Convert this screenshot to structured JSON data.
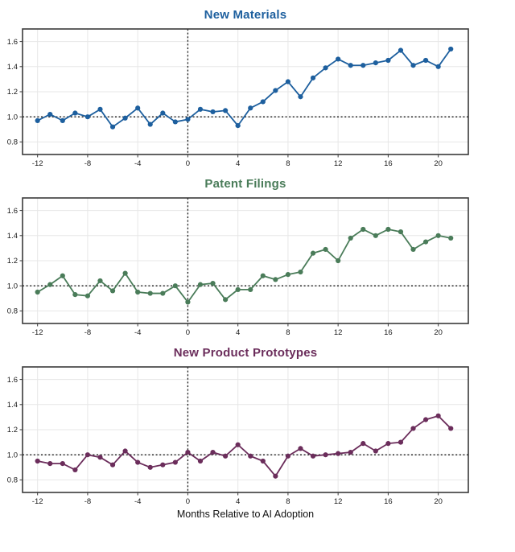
{
  "figure": {
    "xlabel": "Months Relative to AI Adoption",
    "background_color": "#ffffff",
    "axis": {
      "x_ticks": [
        -12,
        -8,
        -4,
        0,
        4,
        8,
        12,
        16,
        20
      ],
      "y_ticks": [
        0.8,
        1.0,
        1.2,
        1.4,
        1.6
      ],
      "xlim": [
        -13.2,
        22.4
      ],
      "ylim": [
        0.7,
        1.7
      ],
      "reference_h": 1.0,
      "reference_v": 0,
      "grid": "on",
      "grid_color": "#e7e7e7",
      "border_color": "#3a3a3a",
      "reference_line_color": "#1a1a1a",
      "tick_label_color": "#1a1a1a"
    }
  },
  "chart_data": [
    {
      "type": "line",
      "title": "New Materials",
      "color": "#1d5f9e",
      "xlabel": "",
      "ylabel": "",
      "ylim": [
        0.7,
        1.7
      ],
      "x": [
        -12,
        -11,
        -10,
        -9,
        -8,
        -7,
        -6,
        -5,
        -4,
        -3,
        -2,
        -1,
        0,
        1,
        2,
        3,
        4,
        5,
        6,
        7,
        8,
        9,
        10,
        11,
        12,
        13,
        14,
        15,
        16,
        17,
        18,
        19,
        20,
        21
      ],
      "values": [
        0.97,
        1.02,
        0.97,
        1.03,
        1.0,
        1.06,
        0.92,
        0.99,
        1.07,
        0.94,
        1.03,
        0.96,
        0.98,
        1.06,
        1.04,
        1.05,
        0.93,
        1.07,
        1.12,
        1.21,
        1.28,
        1.16,
        1.31,
        1.39,
        1.46,
        1.41,
        1.41,
        1.43,
        1.45,
        1.53,
        1.41,
        1.45,
        1.4,
        1.54
      ]
    },
    {
      "type": "line",
      "title": "Patent Filings",
      "color": "#4a7c59",
      "xlabel": "",
      "ylabel": "",
      "ylim": [
        0.7,
        1.7
      ],
      "x": [
        -12,
        -11,
        -10,
        -9,
        -8,
        -7,
        -6,
        -5,
        -4,
        -3,
        -2,
        -1,
        0,
        1,
        2,
        3,
        4,
        5,
        6,
        7,
        8,
        9,
        10,
        11,
        12,
        13,
        14,
        15,
        16,
        17,
        18,
        19,
        20,
        21
      ],
      "values": [
        0.95,
        1.01,
        1.08,
        0.93,
        0.92,
        1.04,
        0.96,
        1.1,
        0.95,
        0.94,
        0.94,
        1.0,
        0.87,
        1.01,
        1.02,
        0.89,
        0.97,
        0.97,
        1.08,
        1.05,
        1.09,
        1.11,
        1.26,
        1.29,
        1.2,
        1.38,
        1.45,
        1.4,
        1.45,
        1.43,
        1.29,
        1.35,
        1.4,
        1.38
      ]
    },
    {
      "type": "line",
      "title": "New Product Prototypes",
      "color": "#6b2d5b",
      "xlabel": "Months Relative to AI Adoption",
      "ylabel": "",
      "ylim": [
        0.7,
        1.7
      ],
      "x": [
        -12,
        -11,
        -10,
        -9,
        -8,
        -7,
        -6,
        -5,
        -4,
        -3,
        -2,
        -1,
        0,
        1,
        2,
        3,
        4,
        5,
        6,
        7,
        8,
        9,
        10,
        11,
        12,
        13,
        14,
        15,
        16,
        17,
        18,
        19,
        20,
        21
      ],
      "values": [
        0.95,
        0.93,
        0.93,
        0.88,
        1.0,
        0.98,
        0.92,
        1.03,
        0.94,
        0.9,
        0.92,
        0.94,
        1.02,
        0.95,
        1.02,
        0.99,
        1.08,
        0.99,
        0.95,
        0.83,
        0.99,
        1.05,
        0.99,
        1.0,
        1.01,
        1.02,
        1.09,
        1.03,
        1.09,
        1.1,
        1.21,
        1.28,
        1.31,
        1.21
      ]
    }
  ]
}
